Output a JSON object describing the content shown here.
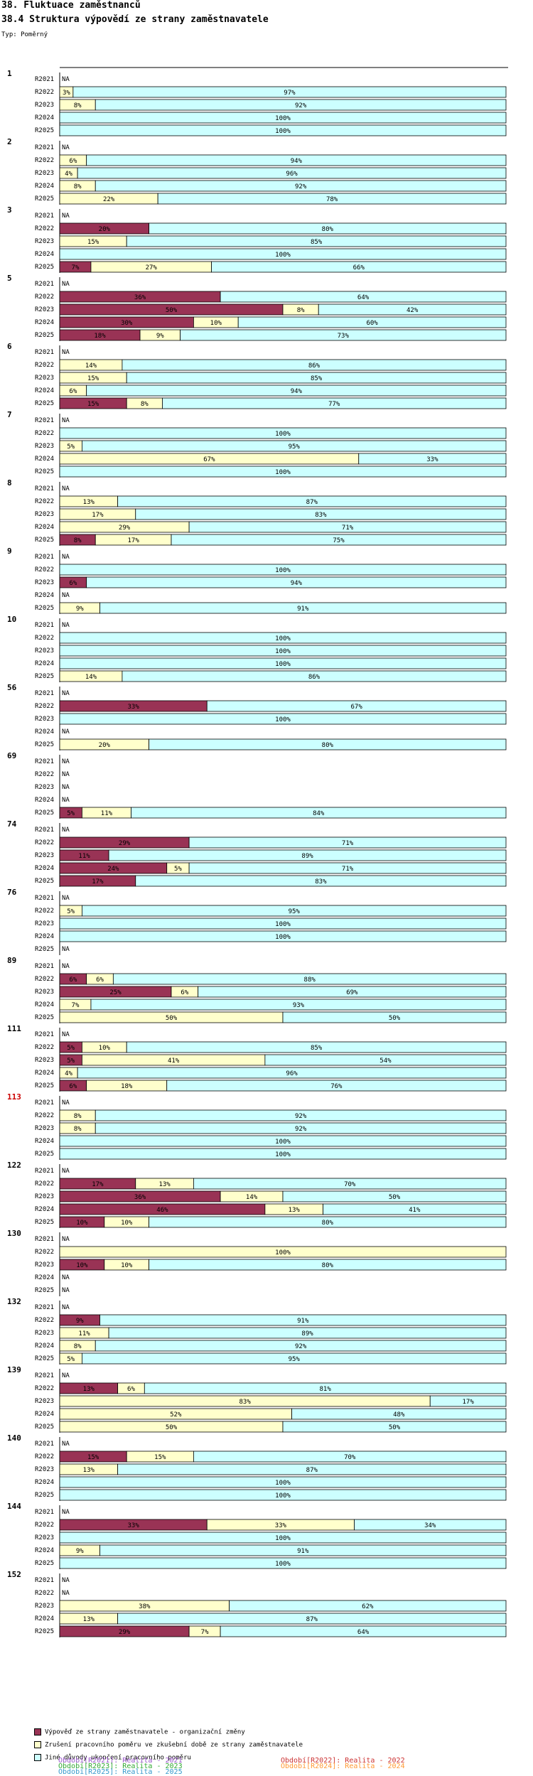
{
  "header": {
    "title": "38. Fluktuace zaměstnanců",
    "subtitle": "38.4 Struktura výpovědí ze strany zaměstnavatele",
    "type_label": "Typ: Poměrný"
  },
  "colors": {
    "organizational": "#993355",
    "probation": "#ffffcc",
    "other": "#ccffff",
    "highlight_group": "#cc0000"
  },
  "legend": {
    "items": [
      {
        "label": "Výpověď ze strany zaměstnavatele - organizační změny",
        "color": "#993355"
      },
      {
        "label": "Zrušení pracovního poměru ve zkušební době ze strany zaměstnavatele",
        "color": "#ffffcc"
      },
      {
        "label": "Jiné důvody ukončení pracovního poměru",
        "color": "#ccffff"
      }
    ],
    "periods": [
      {
        "label": "Období[R2021]: Realita - 2021",
        "color": "#9955cc"
      },
      {
        "label": "Období[R2022]: Realita - 2022",
        "color": "#cc3333"
      },
      {
        "label": "Období[R2023]: Realita - 2023",
        "color": "#33aa33"
      },
      {
        "label": "Období[R2024]: Realita - 2024",
        "color": "#ff9933"
      },
      {
        "label": "Období[R2025]: Realita - 2025",
        "color": "#3399cc"
      }
    ]
  },
  "chart_data": {
    "type": "bar",
    "orientation": "horizontal",
    "stacked": "percent",
    "title": "38.4 Struktura výpovědí ze strany zaměstnavatele",
    "series_names": [
      "Výpověď ze strany zaměstnavatele - organizační změny",
      "Zrušení pracovního poměru ve zkušební době ze strany zaměstnavatele",
      "Jiné důvody ukončení pracovního poměru"
    ],
    "na_label": "NA",
    "highlight_group": "113",
    "groups": [
      {
        "id": "1",
        "rows": [
          {
            "period": "R2021",
            "na": true
          },
          {
            "period": "R2022",
            "values": [
              0,
              3,
              97
            ]
          },
          {
            "period": "R2023",
            "values": [
              0,
              8,
              92
            ]
          },
          {
            "period": "R2024",
            "values": [
              0,
              0,
              100
            ]
          },
          {
            "period": "R2025",
            "values": [
              0,
              0,
              100
            ]
          }
        ]
      },
      {
        "id": "2",
        "rows": [
          {
            "period": "R2021",
            "na": true
          },
          {
            "period": "R2022",
            "values": [
              0,
              6,
              94
            ]
          },
          {
            "period": "R2023",
            "values": [
              0,
              4,
              96
            ]
          },
          {
            "period": "R2024",
            "values": [
              0,
              8,
              92
            ]
          },
          {
            "period": "R2025",
            "values": [
              0,
              22,
              78
            ]
          }
        ]
      },
      {
        "id": "3",
        "rows": [
          {
            "period": "R2021",
            "na": true
          },
          {
            "period": "R2022",
            "values": [
              20,
              0,
              80
            ]
          },
          {
            "period": "R2023",
            "values": [
              0,
              15,
              85
            ]
          },
          {
            "period": "R2024",
            "values": [
              0,
              0,
              100
            ]
          },
          {
            "period": "R2025",
            "values": [
              7,
              27,
              66
            ]
          }
        ]
      },
      {
        "id": "5",
        "rows": [
          {
            "period": "R2021",
            "na": true
          },
          {
            "period": "R2022",
            "values": [
              36,
              0,
              64
            ]
          },
          {
            "period": "R2023",
            "values": [
              50,
              8,
              42
            ]
          },
          {
            "period": "R2024",
            "values": [
              30,
              10,
              60
            ]
          },
          {
            "period": "R2025",
            "values": [
              18,
              9,
              73
            ]
          }
        ]
      },
      {
        "id": "6",
        "rows": [
          {
            "period": "R2021",
            "na": true
          },
          {
            "period": "R2022",
            "values": [
              0,
              14,
              86
            ]
          },
          {
            "period": "R2023",
            "values": [
              0,
              15,
              85
            ]
          },
          {
            "period": "R2024",
            "values": [
              0,
              6,
              94
            ]
          },
          {
            "period": "R2025",
            "values": [
              15,
              8,
              77
            ]
          }
        ]
      },
      {
        "id": "7",
        "rows": [
          {
            "period": "R2021",
            "na": true
          },
          {
            "period": "R2022",
            "values": [
              0,
              0,
              100
            ]
          },
          {
            "period": "R2023",
            "values": [
              0,
              5,
              95
            ]
          },
          {
            "period": "R2024",
            "values": [
              0,
              67,
              33
            ]
          },
          {
            "period": "R2025",
            "values": [
              0,
              0,
              100
            ]
          }
        ]
      },
      {
        "id": "8",
        "rows": [
          {
            "period": "R2021",
            "na": true
          },
          {
            "period": "R2022",
            "values": [
              0,
              13,
              87
            ]
          },
          {
            "period": "R2023",
            "values": [
              0,
              17,
              83
            ]
          },
          {
            "period": "R2024",
            "values": [
              0,
              29,
              71
            ]
          },
          {
            "period": "R2025",
            "values": [
              8,
              17,
              75
            ]
          }
        ]
      },
      {
        "id": "9",
        "rows": [
          {
            "period": "R2021",
            "na": true
          },
          {
            "period": "R2022",
            "values": [
              0,
              0,
              100
            ]
          },
          {
            "period": "R2023",
            "values": [
              6,
              0,
              94
            ]
          },
          {
            "period": "R2024",
            "na": true
          },
          {
            "period": "R2025",
            "values": [
              0,
              9,
              91
            ]
          }
        ]
      },
      {
        "id": "10",
        "rows": [
          {
            "period": "R2021",
            "na": true
          },
          {
            "period": "R2022",
            "values": [
              0,
              0,
              100
            ]
          },
          {
            "period": "R2023",
            "values": [
              0,
              0,
              100
            ]
          },
          {
            "period": "R2024",
            "values": [
              0,
              0,
              100
            ]
          },
          {
            "period": "R2025",
            "values": [
              0,
              14,
              86
            ]
          }
        ]
      },
      {
        "id": "56",
        "rows": [
          {
            "period": "R2021",
            "na": true
          },
          {
            "period": "R2022",
            "values": [
              33,
              0,
              67
            ]
          },
          {
            "period": "R2023",
            "values": [
              0,
              0,
              100
            ]
          },
          {
            "period": "R2024",
            "na": true
          },
          {
            "period": "R2025",
            "values": [
              0,
              20,
              80
            ]
          }
        ]
      },
      {
        "id": "69",
        "rows": [
          {
            "period": "R2021",
            "na": true
          },
          {
            "period": "R2022",
            "na": true
          },
          {
            "period": "R2023",
            "na": true
          },
          {
            "period": "R2024",
            "na": true
          },
          {
            "period": "R2025",
            "values": [
              5,
              11,
              84
            ]
          }
        ]
      },
      {
        "id": "74",
        "rows": [
          {
            "period": "R2021",
            "na": true
          },
          {
            "period": "R2022",
            "values": [
              29,
              0,
              71
            ]
          },
          {
            "period": "R2023",
            "values": [
              11,
              0,
              89
            ]
          },
          {
            "period": "R2024",
            "values": [
              24,
              5,
              71
            ]
          },
          {
            "period": "R2025",
            "values": [
              17,
              0,
              83
            ]
          }
        ]
      },
      {
        "id": "76",
        "rows": [
          {
            "period": "R2021",
            "na": true
          },
          {
            "period": "R2022",
            "values": [
              0,
              5,
              95
            ]
          },
          {
            "period": "R2023",
            "values": [
              0,
              0,
              100
            ]
          },
          {
            "period": "R2024",
            "values": [
              0,
              0,
              100
            ]
          },
          {
            "period": "R2025",
            "na": true
          }
        ]
      },
      {
        "id": "89",
        "rows": [
          {
            "period": "R2021",
            "na": true
          },
          {
            "period": "R2022",
            "values": [
              6,
              6,
              88
            ]
          },
          {
            "period": "R2023",
            "values": [
              25,
              6,
              69
            ]
          },
          {
            "period": "R2024",
            "values": [
              0,
              7,
              93
            ]
          },
          {
            "period": "R2025",
            "values": [
              0,
              50,
              50
            ]
          }
        ]
      },
      {
        "id": "111",
        "rows": [
          {
            "period": "R2021",
            "na": true
          },
          {
            "period": "R2022",
            "values": [
              5,
              10,
              85
            ]
          },
          {
            "period": "R2023",
            "values": [
              5,
              41,
              54
            ]
          },
          {
            "period": "R2024",
            "values": [
              0,
              4,
              96
            ]
          },
          {
            "period": "R2025",
            "values": [
              6,
              18,
              76
            ]
          }
        ]
      },
      {
        "id": "113",
        "rows": [
          {
            "period": "R2021",
            "na": true
          },
          {
            "period": "R2022",
            "values": [
              0,
              8,
              92
            ]
          },
          {
            "period": "R2023",
            "values": [
              0,
              8,
              92
            ]
          },
          {
            "period": "R2024",
            "values": [
              0,
              0,
              100
            ]
          },
          {
            "period": "R2025",
            "values": [
              0,
              0,
              100
            ]
          }
        ]
      },
      {
        "id": "122",
        "rows": [
          {
            "period": "R2021",
            "na": true
          },
          {
            "period": "R2022",
            "values": [
              17,
              13,
              70
            ]
          },
          {
            "period": "R2023",
            "values": [
              36,
              14,
              50
            ]
          },
          {
            "period": "R2024",
            "values": [
              46,
              13,
              41
            ]
          },
          {
            "period": "R2025",
            "values": [
              10,
              10,
              80
            ]
          }
        ]
      },
      {
        "id": "130",
        "rows": [
          {
            "period": "R2021",
            "na": true
          },
          {
            "period": "R2022",
            "values": [
              0,
              100,
              0
            ]
          },
          {
            "period": "R2023",
            "values": [
              10,
              10,
              80
            ]
          },
          {
            "period": "R2024",
            "na": true
          },
          {
            "period": "R2025",
            "na": true
          }
        ]
      },
      {
        "id": "132",
        "rows": [
          {
            "period": "R2021",
            "na": true
          },
          {
            "period": "R2022",
            "values": [
              9,
              0,
              91
            ]
          },
          {
            "period": "R2023",
            "values": [
              0,
              11,
              89
            ]
          },
          {
            "period": "R2024",
            "values": [
              0,
              8,
              92
            ]
          },
          {
            "period": "R2025",
            "values": [
              0,
              5,
              95
            ]
          }
        ]
      },
      {
        "id": "139",
        "rows": [
          {
            "period": "R2021",
            "na": true
          },
          {
            "period": "R2022",
            "values": [
              13,
              6,
              81
            ]
          },
          {
            "period": "R2023",
            "values": [
              0,
              83,
              17
            ]
          },
          {
            "period": "R2024",
            "values": [
              0,
              52,
              48
            ]
          },
          {
            "period": "R2025",
            "values": [
              0,
              50,
              50
            ]
          }
        ]
      },
      {
        "id": "140",
        "rows": [
          {
            "period": "R2021",
            "na": true
          },
          {
            "period": "R2022",
            "values": [
              15,
              15,
              70
            ]
          },
          {
            "period": "R2023",
            "values": [
              0,
              13,
              87
            ]
          },
          {
            "period": "R2024",
            "values": [
              0,
              0,
              100
            ]
          },
          {
            "period": "R2025",
            "values": [
              0,
              0,
              100
            ]
          }
        ]
      },
      {
        "id": "144",
        "rows": [
          {
            "period": "R2021",
            "na": true
          },
          {
            "period": "R2022",
            "values": [
              33,
              33,
              34
            ]
          },
          {
            "period": "R2023",
            "values": [
              0,
              0,
              100
            ]
          },
          {
            "period": "R2024",
            "values": [
              0,
              9,
              91
            ]
          },
          {
            "period": "R2025",
            "values": [
              0,
              0,
              100
            ]
          }
        ]
      },
      {
        "id": "152",
        "rows": [
          {
            "period": "R2021",
            "na": true
          },
          {
            "period": "R2022",
            "na": true
          },
          {
            "period": "R2023",
            "values": [
              0,
              38,
              62
            ]
          },
          {
            "period": "R2024",
            "values": [
              0,
              13,
              87
            ]
          },
          {
            "period": "R2025",
            "values": [
              29,
              7,
              64
            ]
          }
        ]
      }
    ]
  }
}
